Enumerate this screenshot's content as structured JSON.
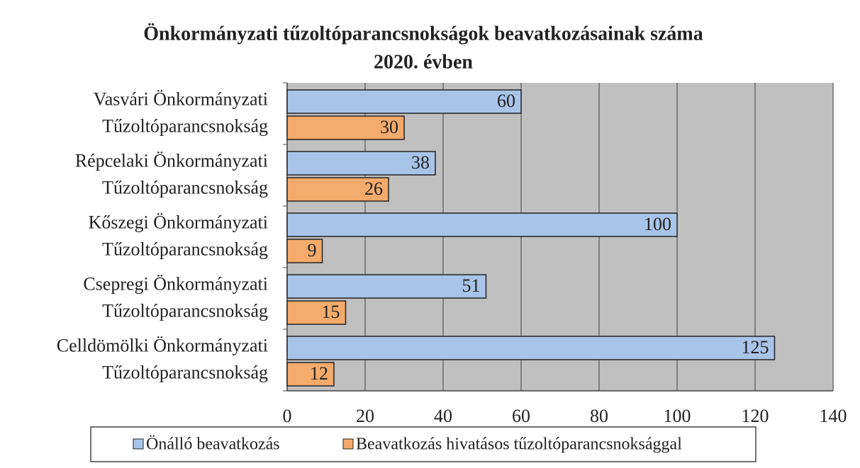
{
  "chart_data": {
    "type": "bar",
    "orientation": "horizontal",
    "title": [
      "Önkormányzati tűzoltóparancsnokságok beavatkozásainak száma",
      "2020. évben"
    ],
    "categories": [
      [
        "Vasvári Önkormányzati",
        "Tűzoltóparancsnokság"
      ],
      [
        "Répcelaki Önkormányzati",
        "Tűzoltóparancsnokság"
      ],
      [
        "Kőszegi Önkormányzati",
        "Tűzoltóparancsnokság"
      ],
      [
        "Csepregi Önkormányzati",
        "Tűzoltóparancsnokság"
      ],
      [
        "Celldömölki Önkormányzati",
        "Tűzoltóparancsnokság"
      ]
    ],
    "series": [
      {
        "name": "Önálló beavatkozás",
        "color": "#a8c4e8",
        "values": [
          60,
          38,
          100,
          51,
          125
        ]
      },
      {
        "name": "Beavatkozás hivatásos tűzoltóparancsnoksággal",
        "color": "#f5ab6b",
        "values": [
          30,
          26,
          9,
          15,
          12
        ]
      }
    ],
    "xlim": [
      0,
      140
    ],
    "xticks": [
      0,
      20,
      40,
      60,
      80,
      100,
      120,
      140
    ],
    "grid": true,
    "legend": "bottom"
  }
}
